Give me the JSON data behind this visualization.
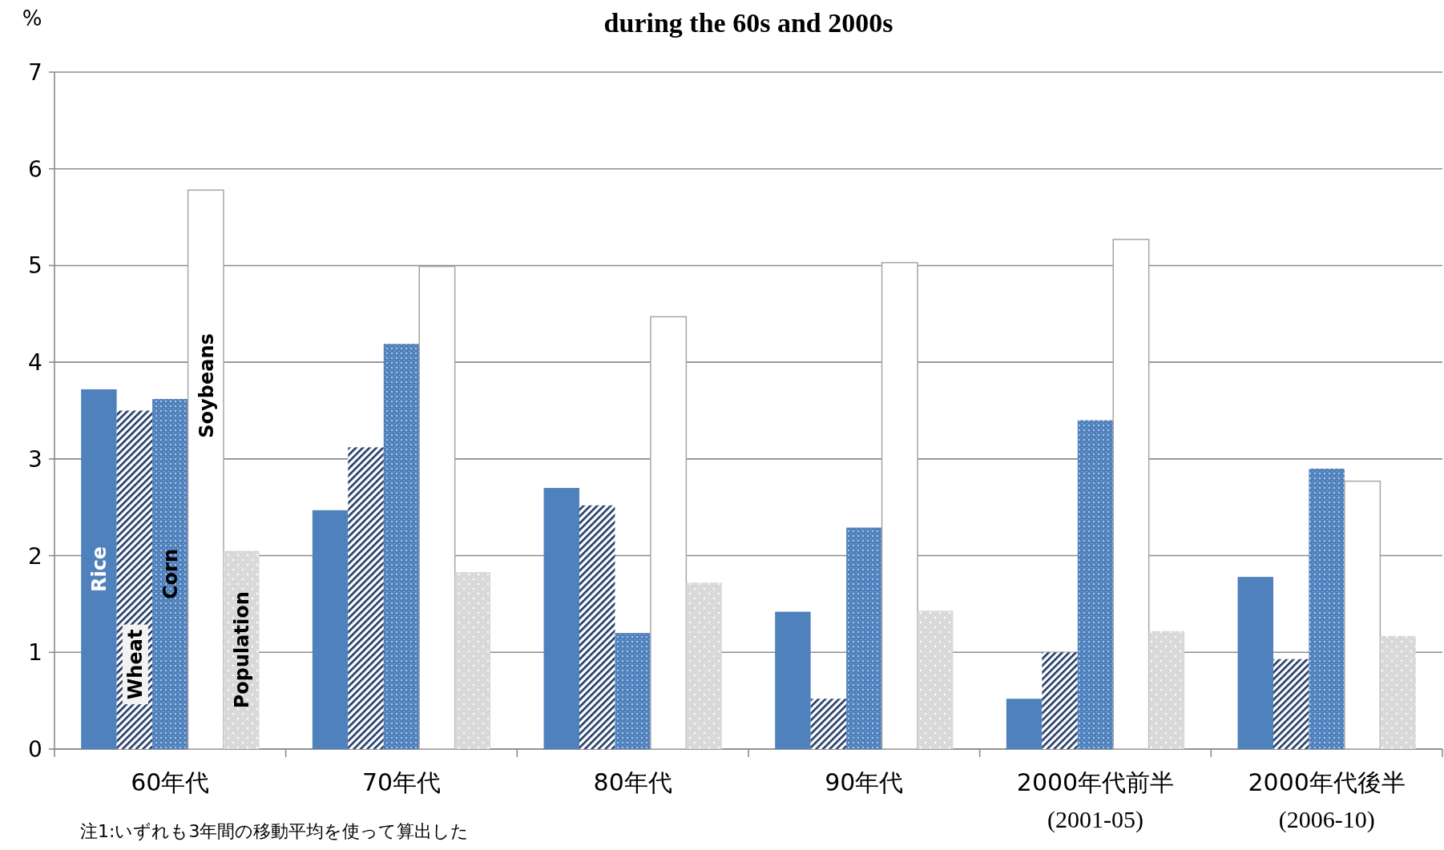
{
  "chart_data": {
    "type": "bar",
    "title": "during the 60s and 2000s",
    "ylabel": "%",
    "categories": [
      "60年代",
      "70年代",
      "80年代",
      "90年代",
      "2000年代前半\n(2001-05)",
      "2000年代後半\n(2006-10)"
    ],
    "series": [
      {
        "name": "Rice",
        "color": "#4f81bd",
        "values": [
          3.72,
          2.47,
          2.7,
          1.42,
          0.52,
          1.78
        ]
      },
      {
        "name": "Wheat",
        "color": "#1f3864",
        "values": [
          3.5,
          3.12,
          2.52,
          0.52,
          1.0,
          0.93
        ]
      },
      {
        "name": "Corn",
        "color": "#4f81bd",
        "values": [
          3.62,
          4.19,
          1.2,
          2.29,
          3.4,
          2.9
        ]
      },
      {
        "name": "Soybeans",
        "color": "#ffffff",
        "values": [
          5.78,
          4.99,
          4.47,
          5.03,
          5.27,
          2.77
        ]
      },
      {
        "name": "Population",
        "color": "#d9d9d9",
        "values": [
          2.05,
          1.83,
          1.72,
          1.43,
          1.22,
          1.17
        ]
      }
    ],
    "ylim": [
      0,
      7
    ],
    "yticks": [
      0,
      1,
      2,
      3,
      4,
      5,
      6,
      7
    ],
    "grid": "y",
    "legend": false,
    "annotations": [
      "注1:いずれも3年間の移動平均を使って算出した"
    ]
  }
}
